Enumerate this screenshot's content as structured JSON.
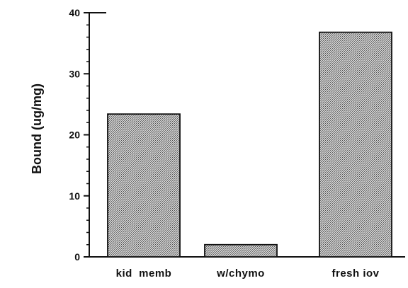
{
  "chart_data": {
    "type": "bar",
    "title": "",
    "xlabel": "",
    "ylabel": "Bound (ug/mg)",
    "categories": [
      "kid  memb",
      "w/chymo",
      "fresh iov"
    ],
    "values": [
      23.4,
      2.0,
      36.8
    ],
    "ylim": [
      0,
      40
    ],
    "yticks": [
      0,
      10,
      20,
      30,
      40
    ],
    "grid": false,
    "legend": "none",
    "bar_fill": "#a9a9a9",
    "bar_pattern": "stipple"
  }
}
